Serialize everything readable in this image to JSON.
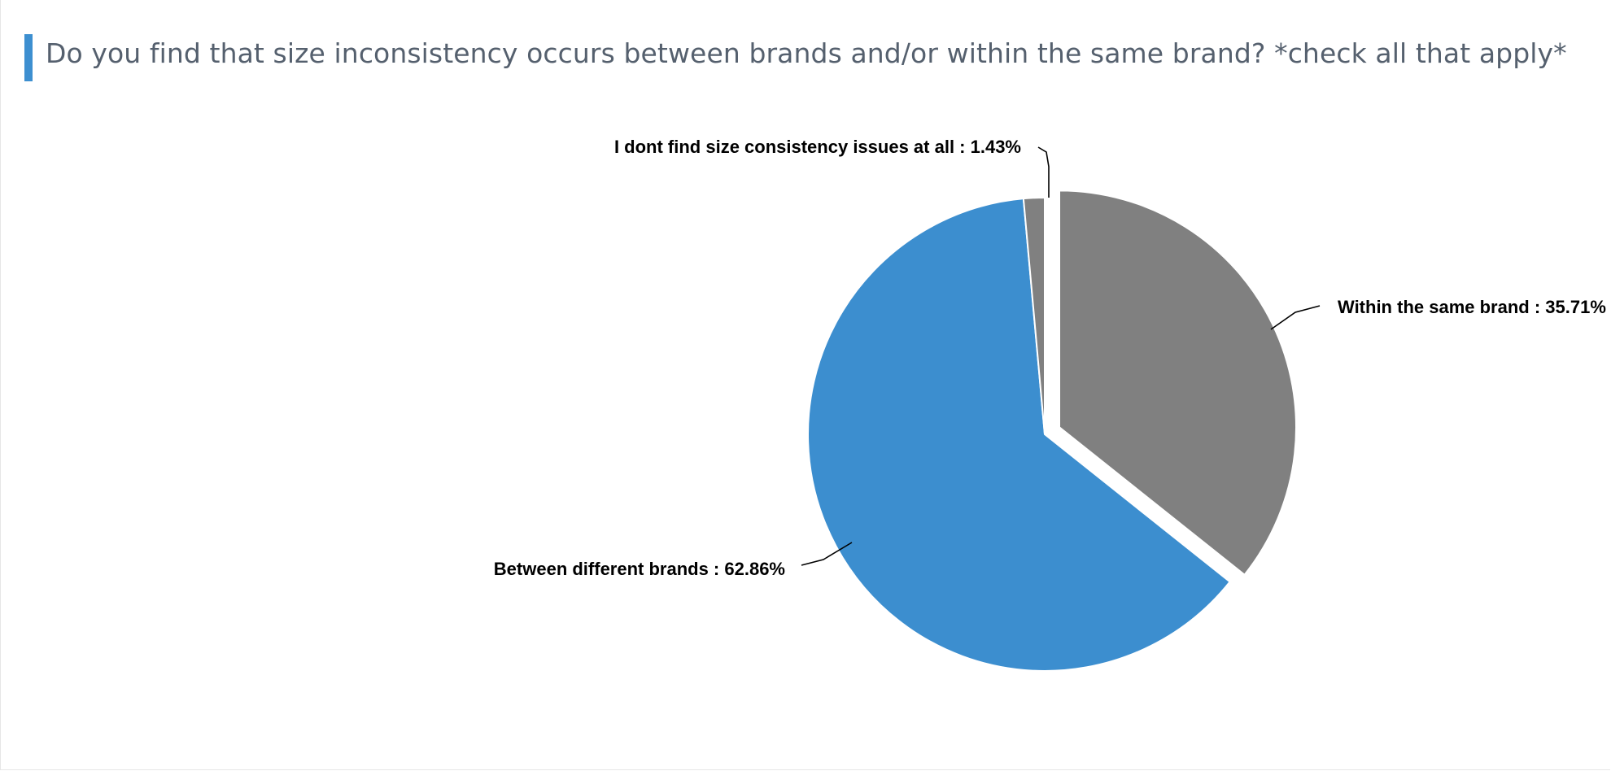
{
  "title": "Do you find that size inconsistency occurs between brands and/or within the same brand? *check all that apply*",
  "colors": {
    "accent": "#3d8fd0",
    "title_text": "#55606e",
    "gray_slice": "#808080",
    "blue_slice": "#3c8ecf"
  },
  "chart_data": {
    "type": "pie",
    "title": "Do you find that size inconsistency occurs between brands and/or within the same brand? *check all that apply*",
    "slices": [
      {
        "label": "Within the same brand",
        "value": 35.71,
        "display": "Within the same brand : 35.71%",
        "color": "#808080",
        "exploded": true
      },
      {
        "label": "Between different brands",
        "value": 62.86,
        "display": "Between different brands : 62.86%",
        "color": "#3c8ecf",
        "exploded": false
      },
      {
        "label": "I dont find size consistency issues at all",
        "value": 1.43,
        "display": "I dont find size consistency issues at all : 1.43%",
        "color": "#808080",
        "exploded": false
      }
    ],
    "start_angle": "12 o'clock, clockwise",
    "legend": "none"
  }
}
